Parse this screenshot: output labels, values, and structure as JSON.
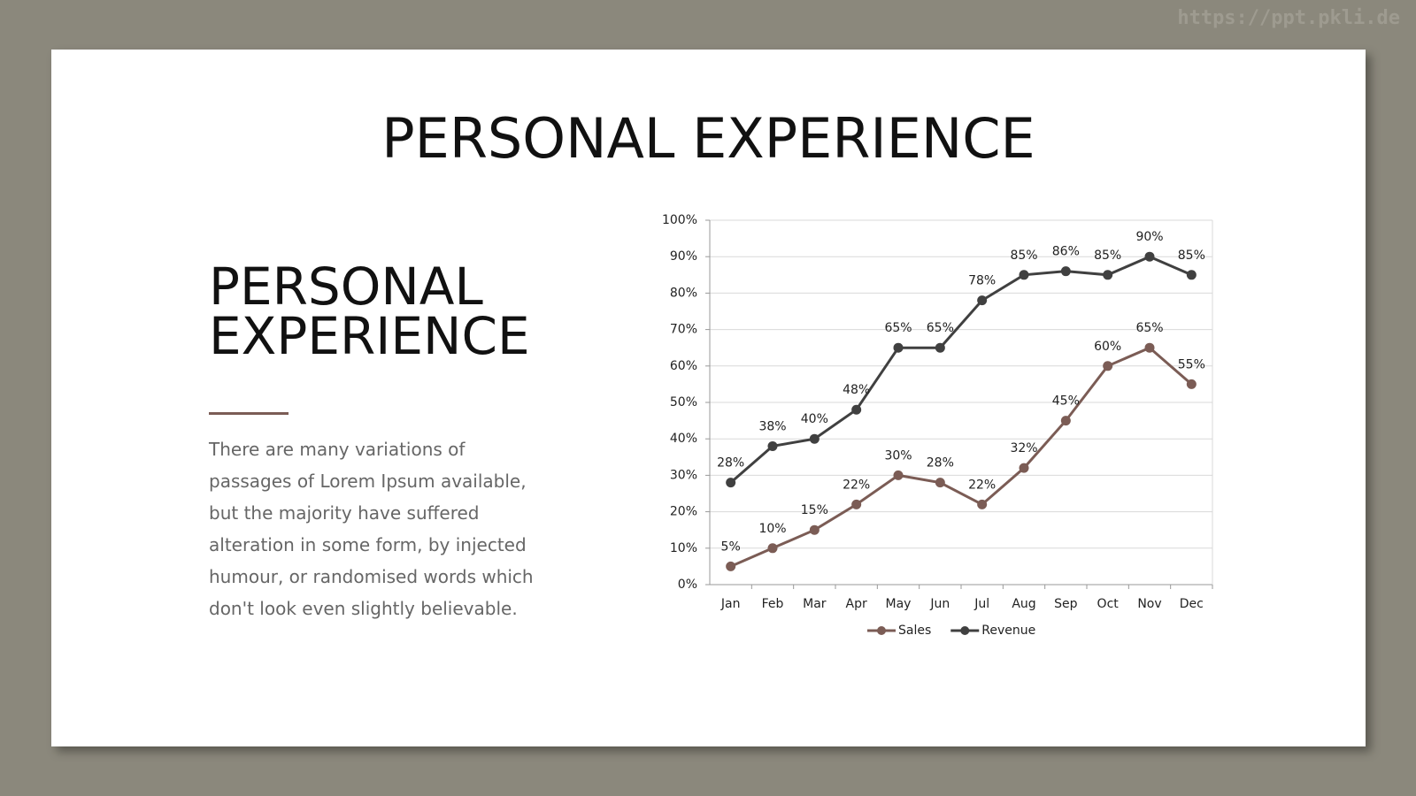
{
  "watermark": "https://ppt.pkli.de",
  "slide": {
    "title": "PERSONAL EXPERIENCE",
    "heading": [
      "PERSONAL",
      "EXPERIENCE"
    ],
    "body": "There are many variations of passages of Lorem Ipsum available, but the majority have suffered alteration in some form, by injected humour, or randomised words which don't look even slightly believable."
  },
  "chart_data": {
    "type": "line",
    "categories": [
      "Jan",
      "Feb",
      "Mar",
      "Apr",
      "May",
      "Jun",
      "Jul",
      "Aug",
      "Sep",
      "Oct",
      "Nov",
      "Dec"
    ],
    "series": [
      {
        "name": "Sales",
        "color": "#7b5c55",
        "values": [
          5,
          10,
          15,
          22,
          30,
          28,
          22,
          32,
          45,
          60,
          65,
          55
        ],
        "value_labels": [
          "5%",
          "10%",
          "15%",
          "22%",
          "30%",
          "28%",
          "22%",
          "32%",
          "45%",
          "60%",
          "65%",
          "55%"
        ]
      },
      {
        "name": "Revenue",
        "color": "#404040",
        "values": [
          28,
          38,
          40,
          48,
          65,
          65,
          78,
          85,
          86,
          85,
          90,
          85
        ],
        "value_labels": [
          "28%",
          "38%",
          "40%",
          "48%",
          "65%",
          "65%",
          "78%",
          "85%",
          "86%",
          "85%",
          "90%",
          "85%"
        ]
      }
    ],
    "ylim": [
      0,
      100
    ],
    "yticks": [
      {
        "value": 0,
        "label": "0%"
      },
      {
        "value": 10,
        "label": "10%"
      },
      {
        "value": 20,
        "label": "20%"
      },
      {
        "value": 30,
        "label": "30%"
      },
      {
        "value": 40,
        "label": "40%"
      },
      {
        "value": 50,
        "label": "50%"
      },
      {
        "value": 60,
        "label": "60%"
      },
      {
        "value": 70,
        "label": "70%"
      },
      {
        "value": 80,
        "label": "80%"
      },
      {
        "value": 90,
        "label": "90%"
      },
      {
        "value": 100,
        "label": "100%"
      }
    ],
    "grid": true,
    "legend": "bottom"
  }
}
